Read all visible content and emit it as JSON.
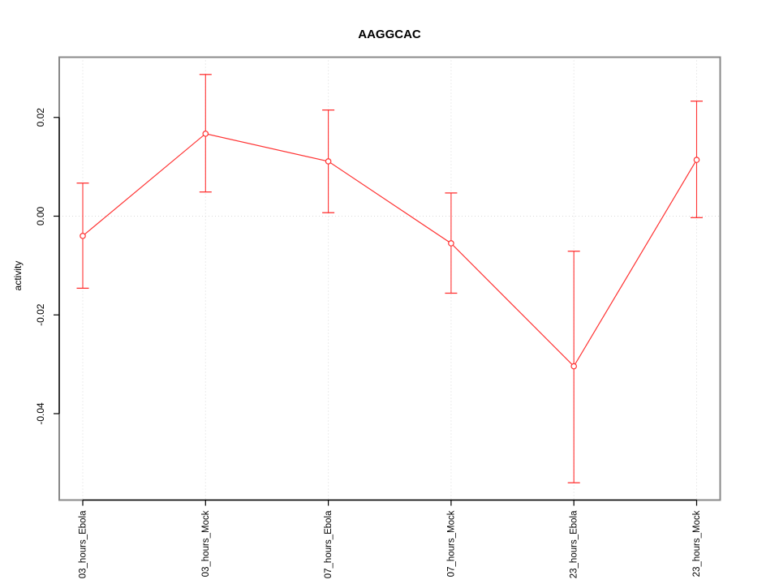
{
  "chart_data": {
    "type": "line",
    "title": "AAGGCAC",
    "xlabel": "",
    "ylabel": "activity",
    "categories": [
      "03_hours_Ebola",
      "03_hours_Mock",
      "07_hours_Ebola",
      "07_hours_Mock",
      "23_hours_Ebola",
      "23_hours_Mock"
    ],
    "series": [
      {
        "name": "activity",
        "values": [
          -0.004,
          0.0167,
          0.0111,
          -0.0055,
          -0.0304,
          0.0114
        ],
        "error_low": [
          -0.0146,
          0.0049,
          0.0007,
          -0.0156,
          -0.054,
          -0.0003
        ],
        "error_high": [
          0.0067,
          0.0287,
          0.0215,
          0.0047,
          -0.0071,
          0.0233
        ]
      }
    ],
    "yticks": [
      0.02,
      0.0,
      -0.02,
      -0.04
    ],
    "ytick_labels": [
      "0.02",
      "0.00",
      "-0.02",
      "-0.04"
    ],
    "ylim": [
      -0.0575,
      0.0322
    ],
    "legend": null,
    "grid": {
      "vertical_at_each_category": true,
      "horizontal_at_zero": true,
      "style": "dotted"
    },
    "marker": "open-circle",
    "colors": {
      "series": "#ff3232",
      "grid": "#d9d9d9",
      "plot_border": "#888888",
      "axis": "#000000",
      "text": "#000000",
      "background": "#ffffff"
    }
  }
}
